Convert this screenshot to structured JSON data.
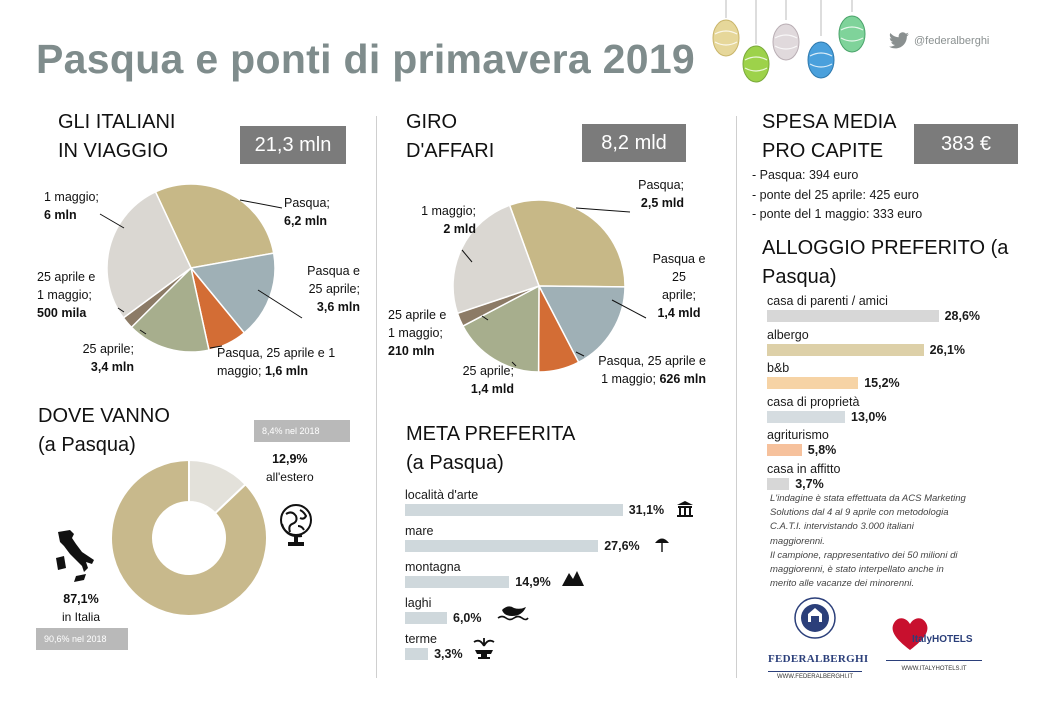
{
  "header": {
    "title": "Pasqua e ponti di primavera 2019",
    "twitter_handle": "@federalberghi"
  },
  "section_travel": {
    "heading_line1": "GLI ITALIANI",
    "heading_line2": "IN VIAGGIO",
    "badge": "21,3 mln"
  },
  "section_business": {
    "heading_line1": "GIRO",
    "heading_line2": "D'AFFARI",
    "badge": "8,2 mld"
  },
  "section_spending": {
    "heading_line1": "SPESA MEDIA",
    "heading_line2": "PRO CAPITE",
    "badge": "383 €",
    "items": [
      "- Pasqua: 394 euro",
      "- ponte del 25 aprile: 425 euro",
      "- ponte del 1 maggio: 333 euro"
    ]
  },
  "section_where": {
    "heading_line1": "DOVE VANNO",
    "heading_line2": "(a Pasqua)",
    "note_abroad_2018": "8,4% nel 2018",
    "note_italy_2018": "90,6% nel 2018",
    "abroad_value": "12,9%",
    "abroad_label": "all'estero",
    "italy_value": "87,1%",
    "italy_label": "in Italia"
  },
  "section_destination": {
    "heading_line1": "META PREFERITA",
    "heading_line2": "(a Pasqua)"
  },
  "section_lodging": {
    "heading_line1": "ALLOGGIO PREFERITO (a",
    "heading_line2": "Pasqua)"
  },
  "disclaimer": [
    "L'indagine è stata effettuata da ACS Marketing",
    "Solutions dal 4 al 9 aprile con metodologia",
    "C.A.T.I. intervistando 3.000 italiani",
    "maggiorenni.",
    "Il campione, rappresentativo dei 50 milioni di",
    "maggiorenni, è stato interpellato anche in",
    "merito alle vacanze dei minorenni."
  ],
  "logos": {
    "federalberghi_name": "FEDERALBERGHI",
    "federalberghi_url": "WWW.FEDERALBERGHI.IT",
    "italyhotels_name": "ItalyHOTELS",
    "italyhotels_url": "WWW.ITALYHOTELS.IT"
  },
  "colors": {
    "pasqua": "#c7b887",
    "ponte25": "#9fb0b6",
    "ponte_both": "#d36d35",
    "aprile25": "#a7ae8d",
    "aprile25_maggio1": "#8c7b66",
    "maggio1": "#dad7d2",
    "italy_ring": "#c8b98c",
    "abroad_ring": "#e3e1da",
    "destination_bar": "#cfd8dc",
    "lodging_parents": "#d7d7d7",
    "lodging_hotel": "#ddd0a8",
    "lodging_bb": "#f6d3a5",
    "lodging_own": "#d5dce0",
    "lodging_agri": "#f6c19c",
    "lodging_rent": "#d7d7d7"
  },
  "chart_data": [
    {
      "type": "pie",
      "categories": [
        "Pasqua",
        "Pasqua e 25 aprile",
        "Pasqua, 25 aprile e 1 maggio",
        "25 aprile",
        "25 aprile e 1 maggio",
        "1 maggio"
      ],
      "values": [
        6.2,
        3.6,
        1.6,
        3.4,
        0.5,
        6.0
      ],
      "labels": [
        {
          "line1": "Pasqua;",
          "line2_bold": "6,2 mln"
        },
        {
          "line1": "Pasqua e",
          "line2": "25 aprile;",
          "line3_bold": "3,6 mln"
        },
        {
          "line1": "Pasqua, 25 aprile e 1",
          "line2": "maggio; ",
          "line2_bold": "1,6 mln"
        },
        {
          "line1": "25 aprile;",
          "line2_bold": "3,4 mln"
        },
        {
          "line1": "25 aprile e",
          "line2": "1 maggio;",
          "line3_bold": "500 mila"
        },
        {
          "line1": "1 maggio;",
          "line2_bold": "6 mln"
        }
      ]
    },
    {
      "type": "pie",
      "categories": [
        "Pasqua",
        "Pasqua e 25 aprile",
        "Pasqua, 25 aprile e 1 maggio",
        "25 aprile",
        "25 aprile e 1 maggio",
        "1 maggio"
      ],
      "values": [
        2.5,
        1.4,
        0.626,
        1.4,
        0.21,
        2.0
      ],
      "labels": [
        {
          "line1": "Pasqua;",
          "line2_bold": "2,5 mld"
        },
        {
          "line1": "Pasqua e",
          "line2": "25",
          "line3": "aprile;",
          "line4_bold": "1,4 mld"
        },
        {
          "line1": "Pasqua, 25 aprile e",
          "line2": "1 maggio; ",
          "line2_bold": "626 mln"
        },
        {
          "line1": "25 aprile;",
          "line2_bold": "1,4 mld"
        },
        {
          "line1": "25 aprile e",
          "line2": "1 maggio;",
          "line3_bold": "210 mln"
        },
        {
          "line1": "1 maggio;",
          "line2_bold": "2 mld"
        }
      ]
    },
    {
      "type": "pie",
      "categories": [
        "in Italia",
        "all'estero"
      ],
      "values": [
        87.1,
        12.9
      ]
    },
    {
      "type": "bar",
      "categories": [
        "località d'arte",
        "mare",
        "montagna",
        "laghi",
        "terme"
      ],
      "values": [
        31.1,
        27.6,
        14.9,
        6.0,
        3.3
      ],
      "value_labels": [
        "31,1%",
        "27,6%",
        "14,9%",
        "6,0%",
        "3,3%"
      ],
      "icons": [
        "temple-icon",
        "beach-umbrella-icon",
        "mountain-icon",
        "lake-icon",
        "fountain-icon"
      ]
    },
    {
      "type": "bar",
      "categories": [
        "casa di parenti / amici",
        "albergo",
        "b&b",
        "casa di proprietà",
        "agriturismo",
        "casa in affitto"
      ],
      "values": [
        28.6,
        26.1,
        15.2,
        13.0,
        5.8,
        3.7
      ],
      "value_labels": [
        "28,6%",
        "26,1%",
        "15,2%",
        "13,0%",
        "5,8%",
        "3,7%"
      ]
    }
  ]
}
